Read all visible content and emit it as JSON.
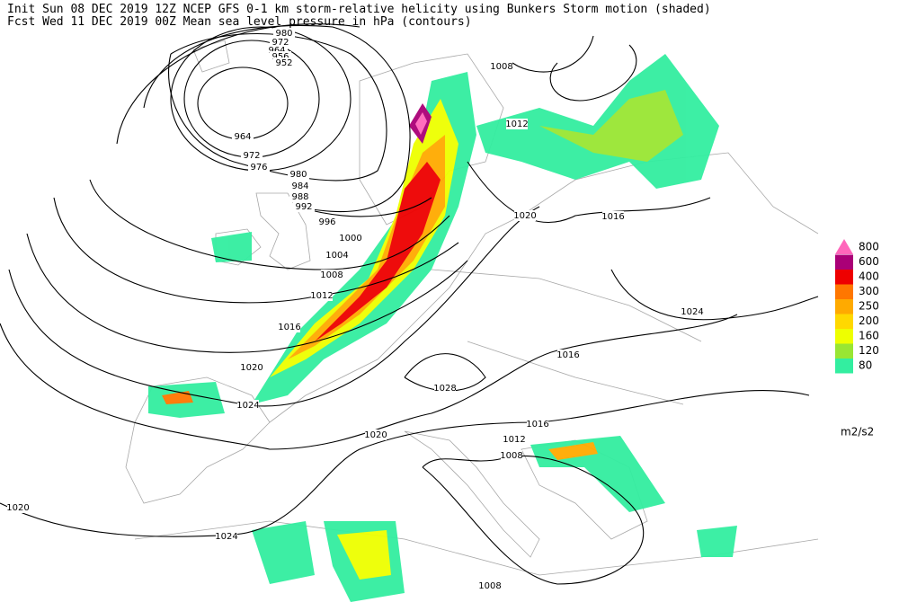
{
  "header": {
    "line1": "Init  Sun 08 DEC 2019 12Z  NCEP GFS 0-1 km storm-relative helicity using Bunkers Storm motion (shaded)",
    "line2": "Fcst Wed 11 DEC 2019 00Z  Mean sea level pressure in hPa (contours)"
  },
  "legend": {
    "levels": [
      {
        "value": 800,
        "color": "#ff66bb"
      },
      {
        "value": 600,
        "color": "#aa0077"
      },
      {
        "value": 400,
        "color": "#ee0000"
      },
      {
        "value": 300,
        "color": "#ff7700"
      },
      {
        "value": 250,
        "color": "#ffaa00"
      },
      {
        "value": 200,
        "color": "#ffd800"
      },
      {
        "value": 160,
        "color": "#eeff00"
      },
      {
        "value": 120,
        "color": "#99e633"
      },
      {
        "value": 80,
        "color": "#33eea0"
      }
    ],
    "unit": "m2/s2"
  },
  "contour_labels": [
    "980",
    "972",
    "964",
    "956",
    "952",
    "964",
    "972",
    "976",
    "980",
    "984",
    "988",
    "992",
    "996",
    "1000",
    "1004",
    "1008",
    "1012",
    "1016",
    "1020",
    "1024",
    "1028",
    "1020",
    "1024",
    "1008",
    "1012",
    "1016",
    "1020",
    "1020",
    "1016",
    "1016",
    "1012",
    "1008",
    "1008",
    "1024"
  ]
}
